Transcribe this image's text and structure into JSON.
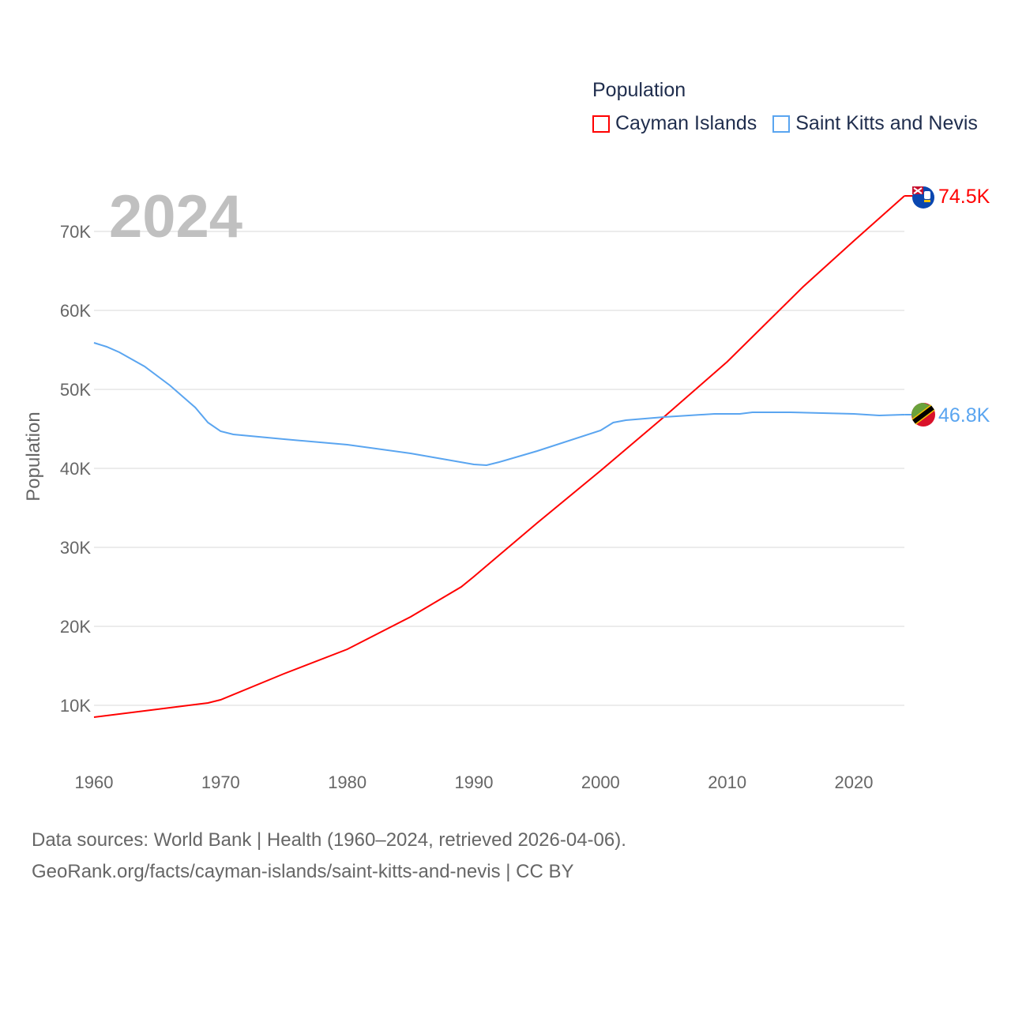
{
  "chart_data": {
    "type": "line",
    "title": "",
    "year_label": "2024",
    "xlabel": "",
    "ylabel": "Population",
    "xlim": [
      1960,
      2024
    ],
    "ylim": [
      0,
      75000
    ],
    "x_ticks": [
      "1960",
      "1970",
      "1980",
      "1990",
      "2000",
      "2010",
      "2020"
    ],
    "y_ticks": [
      "10K",
      "20K",
      "30K",
      "40K",
      "50K",
      "60K",
      "70K"
    ],
    "y_tick_values": [
      10000,
      20000,
      30000,
      40000,
      50000,
      60000,
      70000
    ],
    "grid": true,
    "legend_title": "Population",
    "legend_placement": "top-right",
    "series": [
      {
        "name": "Cayman Islands",
        "color": "#ff0000",
        "end_label": "74.5K",
        "flag": "cayman-islands-flag",
        "x": [
          1960,
          1965,
          1969,
          1970,
          1975,
          1980,
          1985,
          1989,
          1990,
          1995,
          2000,
          2005,
          2010,
          2016,
          2020,
          2024
        ],
        "values": [
          8500,
          9500,
          10300,
          10700,
          14000,
          17100,
          21200,
          25000,
          26300,
          33100,
          39700,
          46500,
          53500,
          63000,
          68800,
          74500
        ]
      },
      {
        "name": "Saint Kitts and Nevis",
        "color": "#5aa5f0",
        "end_label": "46.8K",
        "flag": "saint-kitts-and-nevis-flag",
        "x": [
          1960,
          1961,
          1962,
          1964,
          1966,
          1968,
          1969,
          1970,
          1971,
          1975,
          1980,
          1985,
          1990,
          1991,
          1992,
          1995,
          2000,
          2001,
          2002,
          2005,
          2009,
          2011,
          2012,
          2015,
          2020,
          2022,
          2024
        ],
        "values": [
          55900,
          55400,
          54700,
          52900,
          50500,
          47700,
          45800,
          44700,
          44300,
          43700,
          43000,
          41900,
          40500,
          40400,
          40800,
          42200,
          44800,
          45800,
          46100,
          46500,
          46900,
          46900,
          47100,
          47100,
          46900,
          46700,
          46800
        ]
      }
    ]
  },
  "footer": {
    "line1": "Data sources: World Bank | Health (1960–2024, retrieved 2026-04-06).",
    "line2": "GeoRank.org/facts/cayman-islands/saint-kitts-and-nevis | CC BY"
  }
}
